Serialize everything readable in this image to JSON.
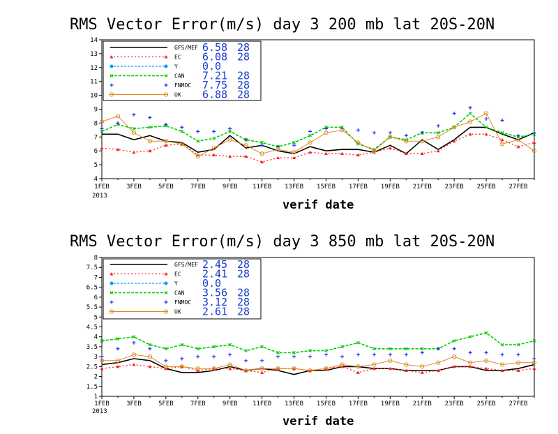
{
  "charts": [
    {
      "type": "line",
      "title": "RMS Vector Error(m/s) day 3  200 mb   lat 20S-20N",
      "xlabel": "verif date",
      "ylim": [
        4,
        14
      ],
      "yticks": [
        "4",
        "5",
        "6",
        "7",
        "8",
        "9",
        "10",
        "11",
        "12",
        "13",
        "14"
      ],
      "xticks": [
        "1FEB",
        "3FEB",
        "5FEB",
        "7FEB",
        "9FEB",
        "11FEB",
        "13FEB",
        "15FEB",
        "17FEB",
        "19FEB",
        "21FEB",
        "23FEB",
        "25FEB",
        "27FEB"
      ],
      "year_label": "2013",
      "legend": [
        {
          "name": "GFS/MEF",
          "value": "6.58",
          "count": "28"
        },
        {
          "name": "EC",
          "value": "6.08",
          "count": "28"
        },
        {
          "name": "Y",
          "value": "0.0",
          "count": ""
        },
        {
          "name": "CAN",
          "value": "7.21",
          "count": "28"
        },
        {
          "name": "FNMOC",
          "value": "7.75",
          "count": "28"
        },
        {
          "name": "UK",
          "value": "6.88",
          "count": "28"
        }
      ],
      "series": [
        {
          "name": "GFS/MEF",
          "color": "#000000",
          "values": [
            7.2,
            7.2,
            6.8,
            7.1,
            6.7,
            6.6,
            5.9,
            6.1,
            7.1,
            6.2,
            6.4,
            6.0,
            5.8,
            6.3,
            6.0,
            6.1,
            6.1,
            5.9,
            6.4,
            5.8,
            6.8,
            6.1,
            6.8,
            7.7,
            7.7,
            7.2,
            6.8,
            7.3
          ]
        },
        {
          "name": "EC",
          "color": "#ff2020",
          "values": [
            6.2,
            6.1,
            5.9,
            6.0,
            6.4,
            6.5,
            5.7,
            5.7,
            5.6,
            5.6,
            5.2,
            5.5,
            5.5,
            5.9,
            5.8,
            5.8,
            5.7,
            5.9,
            6.2,
            5.8,
            5.8,
            6.0,
            6.7,
            7.2,
            7.2,
            6.8,
            6.3,
            6.6
          ]
        },
        {
          "name": "CAN",
          "color": "#00cc00",
          "values": [
            7.4,
            7.9,
            7.6,
            7.7,
            7.8,
            7.4,
            6.7,
            6.9,
            7.4,
            6.8,
            6.6,
            6.3,
            6.6,
            7.1,
            7.7,
            7.7,
            6.5,
            6.1,
            7.0,
            6.8,
            7.3,
            7.3,
            7.7,
            8.7,
            7.7,
            7.3,
            7.0,
            7.2
          ]
        },
        {
          "name": "FNMOC",
          "color": "#2030ff",
          "values": [
            7.6,
            8.0,
            8.6,
            8.4,
            7.9,
            7.7,
            7.4,
            7.4,
            7.6,
            6.8,
            6.4,
            6.3,
            6.4,
            7.4,
            7.6,
            7.6,
            7.5,
            7.3,
            7.3,
            7.1,
            7.3,
            7.8,
            8.7,
            9.1,
            8.3,
            8.2,
            7.1,
            7.3
          ]
        },
        {
          "name": "UK",
          "color": "#e08a20",
          "values": [
            8.1,
            8.5,
            7.3,
            6.7,
            6.7,
            6.5,
            5.6,
            6.2,
            6.8,
            6.4,
            5.8,
            6.1,
            5.9,
            6.6,
            7.3,
            7.5,
            6.6,
            6.0,
            7.0,
            6.7,
            6.7,
            7.0,
            7.7,
            8.1,
            8.7,
            6.5,
            6.8,
            6.0
          ]
        }
      ]
    },
    {
      "type": "line",
      "title": "RMS Vector Error(m/s) day 3  850 mb   lat 20S-20N",
      "xlabel": "verif date",
      "ylim": [
        1,
        8
      ],
      "yticks": [
        "1",
        "1.5",
        "2",
        "2.5",
        "3",
        "3.5",
        "4",
        "4.5",
        "5",
        "5.5",
        "6",
        "6.5",
        "7",
        "7.5",
        "8"
      ],
      "xticks": [
        "1FEB",
        "3FEB",
        "5FEB",
        "7FEB",
        "9FEB",
        "11FEB",
        "13FEB",
        "15FEB",
        "17FEB",
        "19FEB",
        "21FEB",
        "23FEB",
        "25FEB",
        "27FEB"
      ],
      "year_label": "2013",
      "legend": [
        {
          "name": "GFS/MEF",
          "value": "2.45",
          "count": "28"
        },
        {
          "name": "EC",
          "value": "2.41",
          "count": "28"
        },
        {
          "name": "Y",
          "value": "0.0",
          "count": ""
        },
        {
          "name": "CAN",
          "value": "3.56",
          "count": "28"
        },
        {
          "name": "FNMOC",
          "value": "3.12",
          "count": "28"
        },
        {
          "name": "UK",
          "value": "2.61",
          "count": "28"
        }
      ],
      "series": [
        {
          "name": "GFS/MEF",
          "color": "#000000",
          "values": [
            2.6,
            2.7,
            2.9,
            2.8,
            2.4,
            2.2,
            2.2,
            2.3,
            2.5,
            2.3,
            2.4,
            2.3,
            2.1,
            2.3,
            2.3,
            2.5,
            2.5,
            2.4,
            2.4,
            2.3,
            2.3,
            2.3,
            2.5,
            2.5,
            2.3,
            2.3,
            2.4,
            2.6
          ]
        },
        {
          "name": "EC",
          "color": "#ff2020",
          "values": [
            2.4,
            2.5,
            2.6,
            2.5,
            2.4,
            2.5,
            2.3,
            2.4,
            2.4,
            2.3,
            2.2,
            2.4,
            2.4,
            2.3,
            2.4,
            2.5,
            2.2,
            2.4,
            2.4,
            2.3,
            2.2,
            2.3,
            2.5,
            2.5,
            2.4,
            2.3,
            2.3,
            2.4
          ]
        },
        {
          "name": "CAN",
          "color": "#00cc00",
          "values": [
            3.8,
            3.9,
            4.0,
            3.6,
            3.4,
            3.6,
            3.4,
            3.5,
            3.6,
            3.3,
            3.5,
            3.2,
            3.2,
            3.3,
            3.3,
            3.5,
            3.7,
            3.4,
            3.4,
            3.4,
            3.4,
            3.4,
            3.8,
            4.0,
            4.2,
            3.6,
            3.6,
            3.8
          ]
        },
        {
          "name": "FNMOC",
          "color": "#2030ff",
          "values": [
            3.0,
            3.4,
            3.7,
            3.4,
            2.8,
            2.9,
            3.0,
            3.0,
            3.1,
            2.8,
            2.8,
            3.0,
            3.0,
            3.0,
            3.1,
            3.0,
            3.1,
            3.1,
            3.1,
            3.1,
            3.2,
            3.4,
            3.4,
            3.2,
            3.2,
            3.1,
            3.1,
            2.9
          ]
        },
        {
          "name": "UK",
          "color": "#e08a20",
          "values": [
            2.8,
            2.8,
            3.1,
            3.0,
            2.5,
            2.5,
            2.4,
            2.4,
            2.6,
            2.3,
            2.4,
            2.4,
            2.4,
            2.3,
            2.4,
            2.6,
            2.5,
            2.6,
            2.8,
            2.6,
            2.5,
            2.7,
            3.0,
            2.7,
            2.8,
            2.6,
            2.7,
            2.7
          ]
        }
      ]
    }
  ]
}
